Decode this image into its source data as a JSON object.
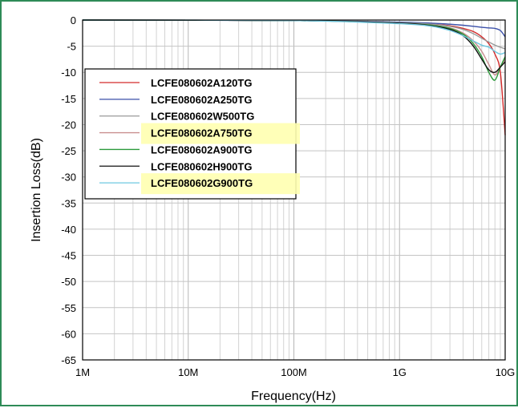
{
  "chart_data": {
    "type": "line",
    "title": "",
    "xlabel": "Frequency(Hz)",
    "ylabel": "Insertion Loss(dB)",
    "xscale": "log",
    "xlim": [
      1000000,
      10000000000
    ],
    "ylim": [
      -65,
      0
    ],
    "grid": true,
    "legend_position": "upper-left",
    "x_ticks": [
      {
        "value": 1000000,
        "label": "1M"
      },
      {
        "value": 10000000,
        "label": "10M"
      },
      {
        "value": 100000000,
        "label": "100M"
      },
      {
        "value": 1000000000,
        "label": "1G"
      },
      {
        "value": 10000000000,
        "label": "10G"
      }
    ],
    "y_ticks": [
      {
        "value": 0,
        "label": "0"
      },
      {
        "value": -5,
        "label": "-5"
      },
      {
        "value": -10,
        "label": "-10"
      },
      {
        "value": -15,
        "label": "-15"
      },
      {
        "value": -20,
        "label": "-20"
      },
      {
        "value": -25,
        "label": "-25"
      },
      {
        "value": -30,
        "label": "-30"
      },
      {
        "value": -35,
        "label": "-35"
      },
      {
        "value": -40,
        "label": "-40"
      },
      {
        "value": -45,
        "label": "-45"
      },
      {
        "value": -50,
        "label": "-50"
      },
      {
        "value": -55,
        "label": "-55"
      },
      {
        "value": -60,
        "label": "-60"
      },
      {
        "value": -65,
        "label": "-65"
      }
    ],
    "series": [
      {
        "name": "LCFE080602A120TG",
        "color": "#d42a2a",
        "highlighted": false,
        "x": [
          1000000,
          100000000,
          1000000000,
          2000000000,
          3000000000,
          4000000000,
          5000000000,
          6000000000,
          7000000000,
          8000000000,
          9000000000,
          10000000000
        ],
        "y": [
          0,
          -0.1,
          -0.5,
          -0.8,
          -1.1,
          -1.6,
          -2.2,
          -3.2,
          -4.5,
          -6.5,
          -10,
          -22
        ]
      },
      {
        "name": "LCFE080602A250TG",
        "color": "#3a4fa8",
        "highlighted": false,
        "x": [
          1000000,
          100000000,
          1000000000,
          2000000000,
          3000000000,
          4000000000,
          5000000000,
          6000000000,
          7000000000,
          8000000000,
          9000000000,
          10000000000
        ],
        "y": [
          0,
          -0.1,
          -0.4,
          -0.6,
          -0.8,
          -1.0,
          -1.2,
          -1.4,
          -1.5,
          -1.6,
          -2.0,
          -3.2
        ]
      },
      {
        "name": "LCFE080602W500TG",
        "color": "#9a9a9a",
        "highlighted": false,
        "x": [
          1000000,
          100000000,
          1000000000,
          2000000000,
          3000000000,
          4000000000,
          5000000000,
          6000000000,
          7000000000,
          8000000000,
          9000000000,
          10000000000
        ],
        "y": [
          0,
          -0.1,
          -0.5,
          -0.8,
          -1.2,
          -1.8,
          -2.6,
          -3.5,
          -4.2,
          -4.8,
          -5.2,
          -5.5
        ]
      },
      {
        "name": "LCFE080602A750TG",
        "color": "#c98f8f",
        "highlighted": true,
        "x": [
          1000000,
          100000000,
          1000000000,
          2000000000,
          3000000000,
          4000000000,
          5000000000,
          6000000000,
          7000000000,
          8000000000,
          9000000000,
          10000000000
        ],
        "y": [
          0,
          -0.1,
          -0.6,
          -1.0,
          -1.5,
          -2.5,
          -4.0,
          -6.0,
          -8.5,
          -10.5,
          -9.0,
          -7.5
        ]
      },
      {
        "name": "LCFE080602A900TG",
        "color": "#2a9a3a",
        "highlighted": false,
        "x": [
          1000000,
          100000000,
          1000000000,
          2000000000,
          3000000000,
          4000000000,
          5000000000,
          6000000000,
          7000000000,
          8000000000,
          9000000000,
          10000000000
        ],
        "y": [
          0,
          -0.1,
          -0.6,
          -1.0,
          -1.6,
          -2.7,
          -4.5,
          -7.0,
          -10.0,
          -11.5,
          -9.0,
          -7.0
        ]
      },
      {
        "name": "LCFE080602H900TG",
        "color": "#111111",
        "highlighted": false,
        "x": [
          1000000,
          100000000,
          1000000000,
          2000000000,
          3000000000,
          4000000000,
          5000000000,
          6000000000,
          7000000000,
          8000000000,
          9000000000,
          10000000000
        ],
        "y": [
          0,
          -0.1,
          -0.6,
          -1.1,
          -1.8,
          -3.0,
          -5.0,
          -7.5,
          -9.5,
          -10.0,
          -9.0,
          -8.0
        ]
      },
      {
        "name": "LCFE080602G900TG",
        "color": "#6ec8e0",
        "highlighted": true,
        "x": [
          1000000,
          100000000,
          1000000000,
          2000000000,
          3000000000,
          4000000000,
          5000000000,
          6000000000,
          7000000000,
          8000000000,
          9000000000,
          10000000000
        ],
        "y": [
          0,
          -0.1,
          -0.7,
          -1.2,
          -2.0,
          -3.0,
          -4.0,
          -4.8,
          -5.2,
          -6.0,
          -6.5,
          -6.2
        ]
      }
    ]
  }
}
